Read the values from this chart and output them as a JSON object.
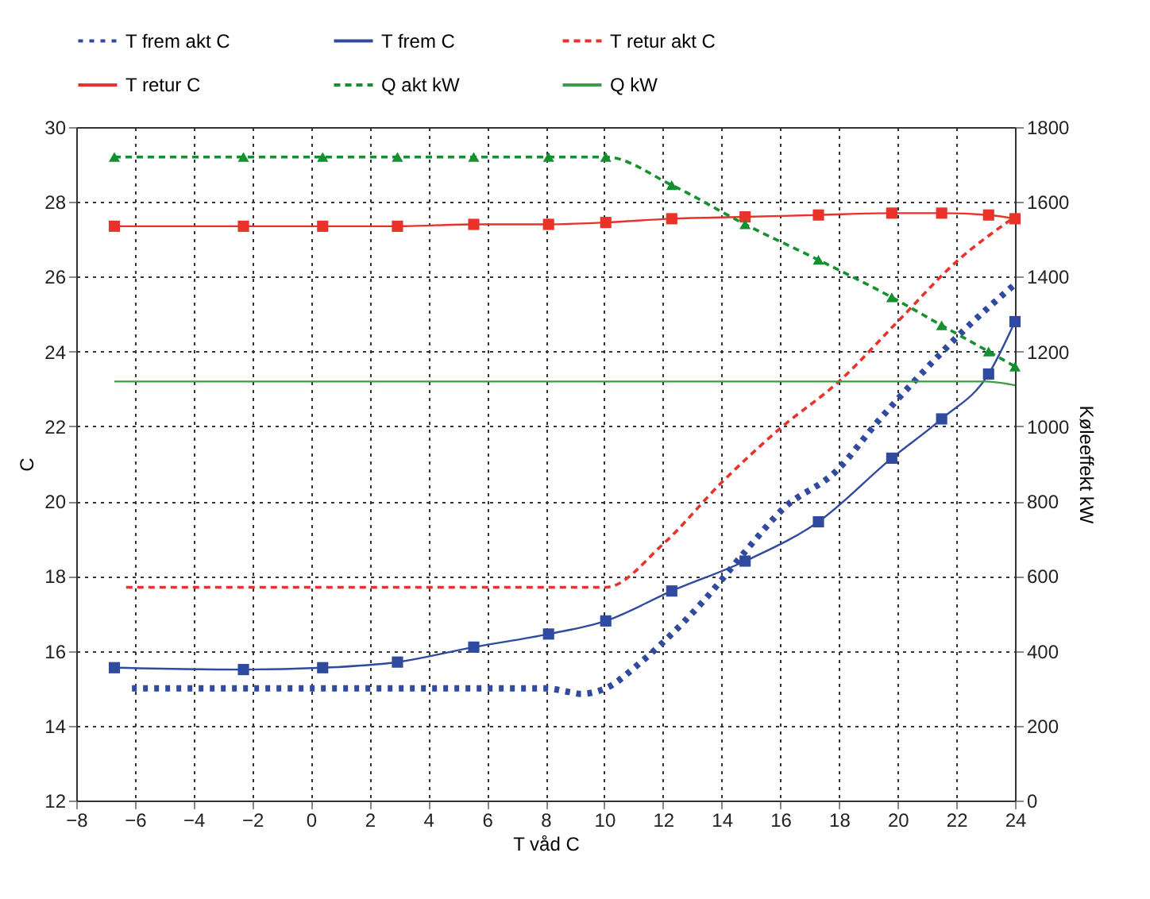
{
  "chart_data": {
    "type": "line",
    "xlabel": "T våd C",
    "ylabel": "C",
    "y2label": "Køleeffekt kW",
    "xlim": [
      -8,
      24
    ],
    "xticks": [
      -8,
      -6,
      -4,
      -2,
      0,
      2,
      4,
      6,
      8,
      10,
      12,
      14,
      16,
      18,
      20,
      22,
      24
    ],
    "ylim": [
      12,
      30
    ],
    "yticks": [
      12,
      14,
      16,
      18,
      20,
      22,
      24,
      26,
      28,
      30
    ],
    "y2lim": [
      0,
      1800
    ],
    "y2ticks": [
      0,
      200,
      400,
      600,
      800,
      1000,
      1200,
      1400,
      1600,
      1800
    ],
    "grid": true,
    "legend": "top",
    "series": [
      {
        "name": "T frem akt C",
        "color": "#2f4a9e",
        "line_style": "dotted",
        "marker": "none",
        "x": [
          -6.1,
          -2,
          2,
          6,
          8,
          8.8,
          9.2,
          10.05,
          11.25,
          12.1,
          13.4,
          14.85,
          16.1,
          17.9,
          19.4,
          20.8,
          22.3,
          24
        ],
        "values": [
          15.0,
          15.0,
          15.0,
          15.0,
          15.0,
          14.9,
          14.85,
          15.0,
          15.7,
          16.3,
          17.35,
          18.7,
          19.8,
          20.8,
          22.2,
          23.4,
          24.6,
          25.8
        ]
      },
      {
        "name": "T frem C",
        "color": "#2f4a9e",
        "line_style": "solid",
        "marker": "square",
        "x": [
          -6.7,
          -2.3,
          0.4,
          2.95,
          5.55,
          8.1,
          10.05,
          12.3,
          14.8,
          17.3,
          19.8,
          21.5,
          23.1,
          24
        ],
        "values": [
          15.55,
          15.5,
          15.55,
          15.7,
          16.1,
          16.45,
          16.8,
          17.6,
          18.4,
          19.45,
          21.15,
          22.2,
          23.4,
          24.8
        ]
      },
      {
        "name": "T retur akt C",
        "color": "#e8322a",
        "line_style": "dashed",
        "marker": "none",
        "x": [
          -6.3,
          10.05,
          12,
          14,
          16,
          18,
          20,
          22,
          24
        ],
        "values": [
          17.7,
          17.7,
          18.85,
          20.5,
          21.95,
          23.2,
          24.8,
          26.4,
          27.6
        ]
      },
      {
        "name": "T retur C",
        "color": "#e8322a",
        "line_style": "solid",
        "marker": "square",
        "x": [
          -6.7,
          -2.3,
          0.4,
          2.95,
          5.55,
          8.1,
          10.05,
          12.3,
          14.8,
          17.3,
          19.8,
          21.5,
          23.1,
          24
        ],
        "values": [
          27.35,
          27.35,
          27.35,
          27.35,
          27.4,
          27.4,
          27.45,
          27.55,
          27.6,
          27.65,
          27.7,
          27.7,
          27.65,
          27.55
        ]
      },
      {
        "name": "Q akt kW",
        "color": "#14902e",
        "line_style": "dashed",
        "marker": "triangle",
        "axis": "y2",
        "x": [
          -6.7,
          -2.3,
          0.4,
          2.95,
          5.55,
          8.1,
          10.05,
          12.3,
          14.8,
          17.3,
          19.8,
          21.5,
          23.1,
          24
        ],
        "values": [
          1720,
          1720,
          1720,
          1720,
          1720,
          1720,
          1720,
          1645,
          1540,
          1445,
          1345,
          1270,
          1200,
          1160
        ]
      },
      {
        "name": "Q kW",
        "color": "#3a9e48",
        "line_style": "solid",
        "marker": "none",
        "axis": "y2",
        "x": [
          -6.7,
          0,
          10,
          20,
          23,
          24
        ],
        "values": [
          1120,
          1120,
          1120,
          1120,
          1120,
          1110
        ]
      }
    ]
  }
}
